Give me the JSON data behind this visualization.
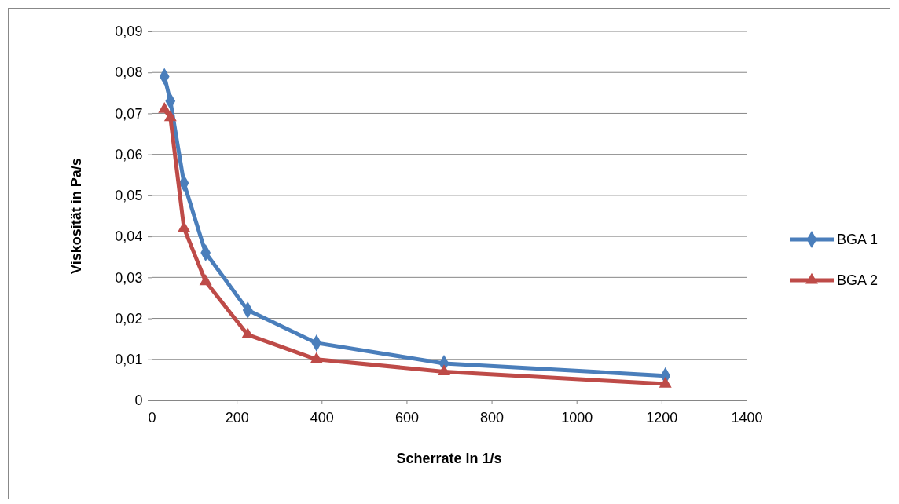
{
  "chart_data": {
    "type": "line",
    "xlabel": "Scherrate in 1/s",
    "ylabel": "Viskosität in Pa/s",
    "x": [
      30,
      44,
      76,
      127,
      226,
      388,
      688,
      1209
    ],
    "series": [
      {
        "name": "BGA 1",
        "color": "#4a7ebb",
        "marker": "diamond",
        "values": [
          0.079,
          0.073,
          0.053,
          0.036,
          0.022,
          0.014,
          0.009,
          0.006
        ]
      },
      {
        "name": "BGA 2",
        "color": "#be4b48",
        "marker": "triangle",
        "values": [
          0.071,
          0.069,
          0.042,
          0.029,
          0.016,
          0.01,
          0.007,
          0.004
        ]
      }
    ],
    "xlim": [
      0,
      1400
    ],
    "xticks": [
      0,
      200,
      400,
      600,
      800,
      1000,
      1200,
      1400
    ],
    "ylim": [
      0,
      0.09
    ],
    "yticks": [
      {
        "value": 0,
        "label": "0"
      },
      {
        "value": 0.01,
        "label": "0,01"
      },
      {
        "value": 0.02,
        "label": "0,02"
      },
      {
        "value": 0.03,
        "label": "0,03"
      },
      {
        "value": 0.04,
        "label": "0,04"
      },
      {
        "value": 0.05,
        "label": "0,05"
      },
      {
        "value": 0.06,
        "label": "0,06"
      },
      {
        "value": 0.07,
        "label": "0,07"
      },
      {
        "value": 0.08,
        "label": "0,08"
      },
      {
        "value": 0.09,
        "label": "0,09"
      }
    ],
    "grid": "y",
    "legend": "right",
    "line_style": "solid"
  }
}
